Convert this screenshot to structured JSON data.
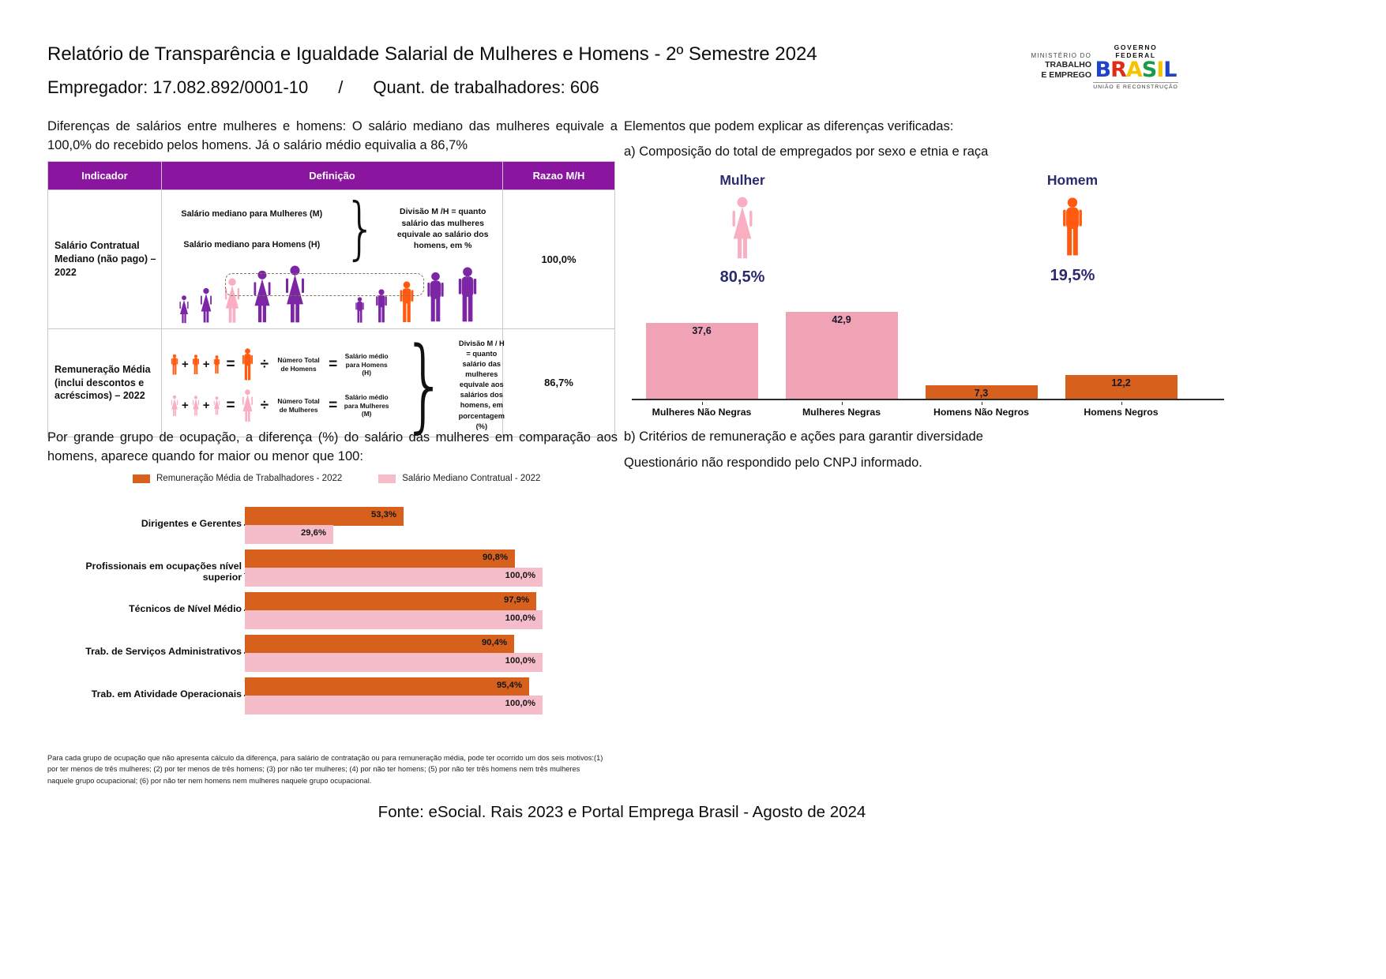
{
  "header": {
    "title": "Relatório de Transparência e Igualdade Salarial de Mulheres e Homens - 2º Semestre 2024",
    "employer": "Empregador: 17.082.892/0001-10",
    "separator": "/",
    "workers": "Quant. de trabalhadores: 606",
    "ministry_logo": {
      "line1": "MINISTÉRIO DO",
      "line2": "TRABALHO",
      "line3": "E EMPREGO"
    },
    "gov_logo": {
      "top": "GOVERNO FEDERAL",
      "brand": "BRASIL",
      "bottom": "UNIÃO E RECONSTRUÇÃO"
    }
  },
  "left": {
    "intro": "Diferenças de salários entre mulheres e homens: O salário mediano das mulheres equivale a 100,0% do recebido pelos homens. Já o salário médio equivalia a 86,7%",
    "table": {
      "headers": [
        "Indicador",
        "Definição",
        "Razao M/H"
      ],
      "symbols": {
        "plus": "+",
        "equals": "=",
        "divide": "÷",
        "brace": "}"
      },
      "rows": [
        {
          "indicator": "Salário Contratual Mediano (não pago) – 2022",
          "def_line1": "Salário mediano para Mulheres (M)",
          "def_line2": "Salário mediano para Homens (H)",
          "def_result": "Divisão M /H = quanto salário das mulheres equivale ao salário dos homens, em %",
          "ratio": "100,0%"
        },
        {
          "indicator": "Remuneração Média (inclui descontos e acréscimos) – 2022",
          "men_divisor": "Número Total de Homens",
          "men_result": "Salário médio para Homens (H)",
          "women_divisor": "Número Total de Mulheres",
          "women_result": "Salário médio para Mulheres (M)",
          "def_result": "Divisão M / H = quanto salário das mulheres equivale aos salários dos homens, em porcentagem (%)",
          "ratio": "86,7%"
        }
      ]
    },
    "occupation_intro": "Por grande grupo de ocupação, a diferença (%) do salário das mulheres em comparação aos homens, aparece quando for maior ou menor que 100:",
    "footnote": "Para cada grupo de ocupação que não apresenta cálculo da diferença, para salário de contratação ou para remuneração média, pode ter ocorrido um dos seis motivos:(1) por ter menos de três mulheres; (2) por ter menos de três homens; (3) por não ter mulheres; (4) por não ter homens; (5) por não ter três homens nem três mulheres naquele grupo ocupacional; (6) por não ter nem homens nem mulheres naquele grupo ocupacional."
  },
  "right": {
    "heading": "Elementos que podem explicar as diferenças verificadas:",
    "section_a": "a) Composição do total de empregados por sexo e etnia e raça",
    "mulher_label": "Mulher",
    "mulher_pct": "80,5%",
    "homem_label": "Homem",
    "homem_pct": "19,5%",
    "section_b": "b) Critérios de remuneração e ações para garantir diversidade",
    "section_b_text": "Questionário não respondido pelo CNPJ informado."
  },
  "footer": "Fonte: eSocial. Rais 2023 e Portal Emprega Brasil - Agosto de 2024",
  "icons": {
    "mulher_icon": "woman-silhouette",
    "homem_icon": "man-silhouette",
    "table_figures": "people-silhouettes"
  },
  "colors": {
    "purple_header": "#8A16A0",
    "purple_figure": "#7C26A6",
    "pink_figure": "#F9AEC2",
    "pink_bar": "#F0A3B4",
    "pink_bar_light": "#F5BCCA",
    "orange_figure": "#FF5A0F",
    "orange_bar": "#D6601C",
    "navy_text": "#2B2A6E"
  },
  "chart_data": [
    {
      "type": "bar",
      "title": "Composição do total de empregados por sexo e etnia e raça",
      "categories": [
        "Mulheres Não Negras",
        "Mulheres Negras",
        "Homens Não Negros",
        "Homens Negros"
      ],
      "values": [
        37.6,
        42.9,
        7.3,
        12.2
      ],
      "labels": [
        "37,6",
        "42,9",
        "7,3",
        "12,2"
      ],
      "colors": [
        "#F0A3B4",
        "#F0A3B4",
        "#D6601C",
        "#D6601C"
      ],
      "xlabel": "",
      "ylabel": "",
      "ylim": [
        0,
        45
      ],
      "grid": false,
      "legend": "none"
    },
    {
      "type": "bar-horizontal",
      "title": "Diferença (%) do salário das mulheres em comparação aos homens por grande grupo de ocupação",
      "categories": [
        "Dirigentes e Gerentes",
        "Profissionais em ocupações nível superior",
        "Técnicos de Nível Médio",
        "Trab. de Serviços Administrativos",
        "Trab. em Atividade Operacionais"
      ],
      "series": [
        {
          "name": "Remuneração Média de Trabalhadores - 2022",
          "color": "#D6601C",
          "values": [
            53.3,
            90.8,
            97.9,
            90.4,
            95.4
          ],
          "labels": [
            "53,3%",
            "90,8%",
            "97,9%",
            "90,4%",
            "95,4%"
          ]
        },
        {
          "name": "Salário Mediano Contratual - 2022",
          "color": "#F5BCCA",
          "values": [
            29.6,
            100.0,
            100.0,
            100.0,
            100.0
          ],
          "labels": [
            "29,6%",
            "100,0%",
            "100,0%",
            "100,0%",
            "100,0%"
          ]
        }
      ],
      "xlim": [
        0,
        100
      ],
      "grid": false,
      "legend": "top"
    }
  ]
}
